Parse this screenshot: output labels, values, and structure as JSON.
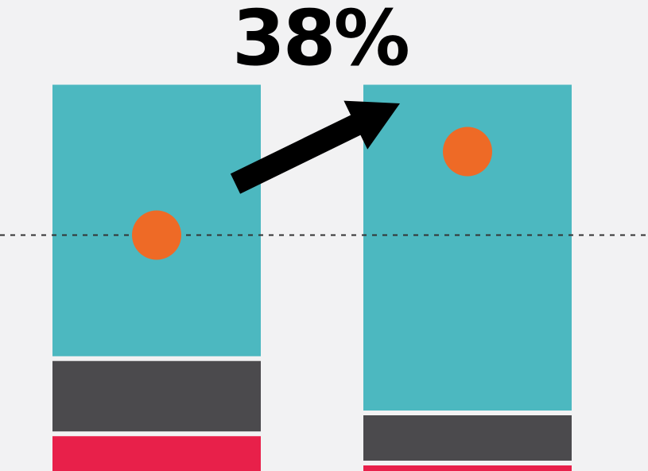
{
  "chart_data": {
    "type": "bar",
    "stacked": true,
    "categories": [
      "",
      ""
    ],
    "series": [
      {
        "color": "#e8204a",
        "values": [
          11,
          4
        ]
      },
      {
        "color": "#4b4a4d",
        "values": [
          18,
          12
        ]
      },
      {
        "color": "#4cb8c0",
        "values": [
          65,
          78
        ]
      }
    ],
    "markers": {
      "type": "scatter",
      "color": "#ee6a26",
      "values": [
        58,
        78
      ]
    },
    "reference_line": {
      "value": 58,
      "style": "dashed",
      "color": "#333333"
    },
    "annotation": {
      "text": "38%",
      "arrow": true
    },
    "ylim": [
      0,
      110
    ],
    "grid": false,
    "legend": "none"
  }
}
